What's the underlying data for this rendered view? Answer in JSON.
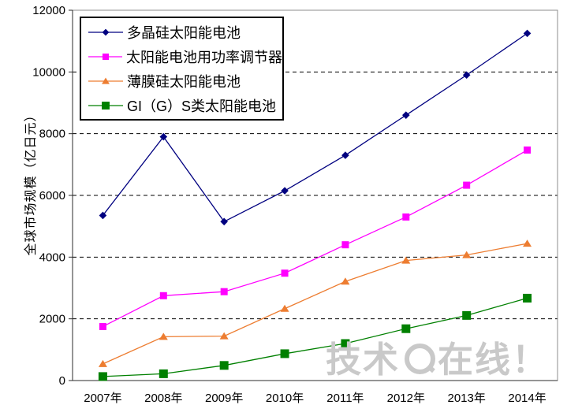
{
  "chart_data": {
    "type": "line",
    "categories": [
      "2007年",
      "2008年",
      "2009年",
      "2010年",
      "2011年",
      "2012年",
      "2013年",
      "2014年"
    ],
    "ylabel": "全球市场规模（亿日元）",
    "ylim": [
      0,
      12000
    ],
    "y_ticks": [
      0,
      2000,
      4000,
      6000,
      8000,
      10000,
      12000
    ],
    "grid": "horizontal-dashed",
    "legend_position": "top-left-inside",
    "series": [
      {
        "name": "多晶硅太阳能电池",
        "color": "#000080",
        "marker": "diamond",
        "values": [
          5350,
          7900,
          5150,
          6150,
          7300,
          8600,
          9900,
          11250
        ]
      },
      {
        "name": "太阳能电池用功率调节器",
        "color": "#FF00FF",
        "marker": "square",
        "values": [
          1750,
          2750,
          2880,
          3480,
          4400,
          5300,
          6330,
          7470
        ]
      },
      {
        "name": "薄膜硅太阳能电池",
        "color": "#ED7D31",
        "marker": "triangle",
        "values": [
          540,
          1420,
          1440,
          2330,
          3210,
          3890,
          4070,
          4440
        ]
      },
      {
        "name": "GI（G）S类太阳能电池",
        "color": "#008000",
        "marker": "square-large",
        "values": [
          130,
          220,
          490,
          870,
          1200,
          1680,
          2110,
          2670
        ]
      }
    ]
  },
  "watermark": {
    "part1": "技术",
    "part2": "在线！",
    "color": "#c9c9c9"
  }
}
